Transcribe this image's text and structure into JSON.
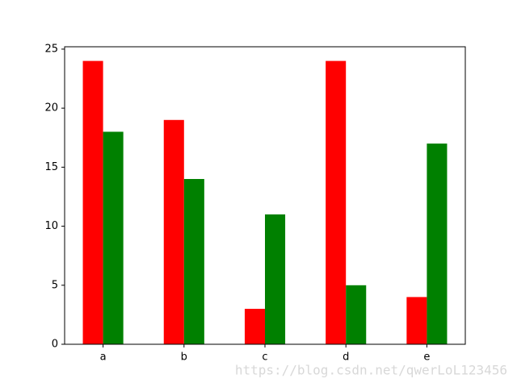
{
  "chart_data": {
    "type": "bar",
    "categories": [
      "a",
      "b",
      "c",
      "d",
      "e"
    ],
    "series": [
      {
        "color": "#ff0000",
        "values": [
          24,
          19,
          3,
          24,
          4
        ]
      },
      {
        "color": "#008000",
        "values": [
          18,
          14,
          11,
          5,
          17
        ]
      }
    ],
    "ylim": [
      0,
      25.2
    ],
    "yticks": [
      0,
      5,
      10,
      15,
      20,
      25
    ]
  },
  "watermark": "https://blog.csdn.net/qwerLoL123456"
}
